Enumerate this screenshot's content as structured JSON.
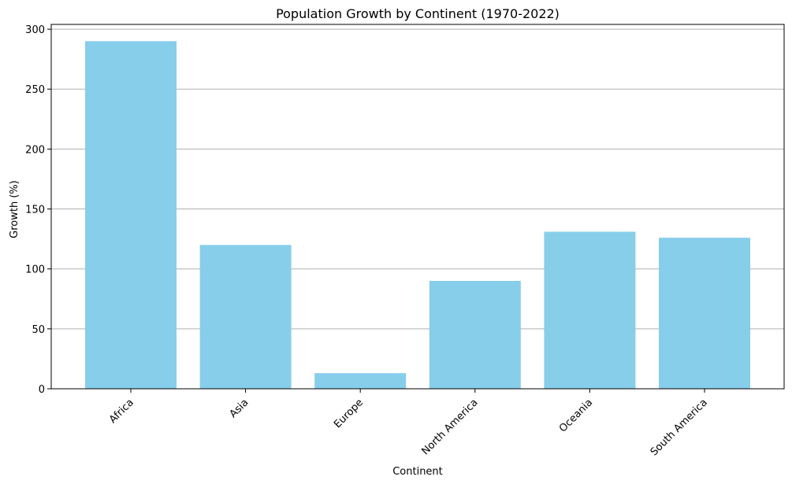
{
  "chart_data": {
    "type": "bar",
    "title": "Population Growth by Continent (1970-2022)",
    "xlabel": "Continent",
    "ylabel": "Growth (%)",
    "categories": [
      "Africa",
      "Asia",
      "Europe",
      "North America",
      "Oceania",
      "South America"
    ],
    "values": [
      290,
      120,
      13,
      90,
      131,
      126
    ],
    "ylim": [
      0,
      304
    ],
    "yticks": [
      0,
      50,
      100,
      150,
      200,
      250,
      300
    ],
    "grid": "y",
    "bar_color": "#87CEEB",
    "grid_color": "#b0b0b0",
    "x_tick_rotation": "45"
  }
}
